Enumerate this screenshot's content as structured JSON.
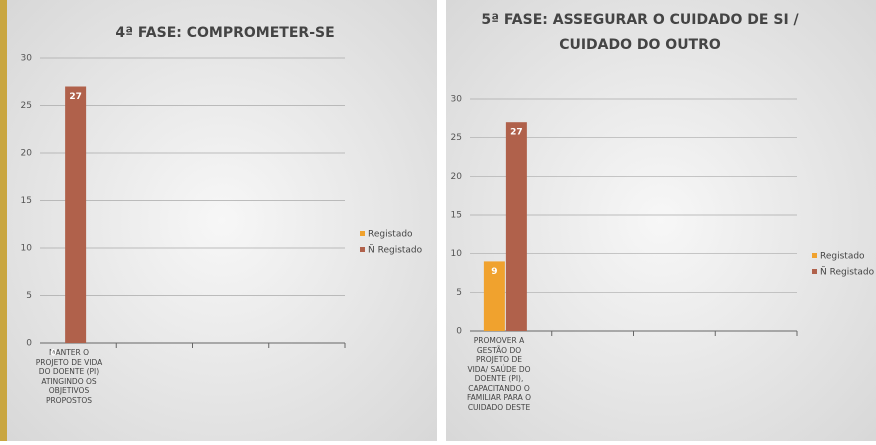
{
  "chart_data": [
    {
      "type": "bar",
      "title": "4ª FASE: COMPROMETER-SE",
      "categories": [
        "MANTER O PROJETO DE VIDA DO DOENTE (PI) ATINGINDO OS OBJETIVOS PROPOSTOS",
        null,
        null,
        null
      ],
      "series": [
        {
          "name": "Registado",
          "color": "#f0a22e",
          "values": [
            0,
            null,
            null,
            null
          ]
        },
        {
          "name": "Ñ Registado",
          "color": "#b0614b",
          "values": [
            27,
            null,
            null,
            null
          ]
        }
      ],
      "ylim": [
        0,
        30
      ],
      "yticks": [
        0,
        5,
        10,
        15,
        20,
        25,
        30
      ],
      "grid": true,
      "legend": "right"
    },
    {
      "type": "bar",
      "title": [
        "5ª FASE: ASSEGURAR O CUIDADO DE SI /",
        "CUIDADO DO OUTRO"
      ],
      "categories": [
        "PROMOVER A GESTÃO DO PROJETO DE VIDA/ SAÚDE DO DOENTE (PI), CAPACITANDO O FAMILIAR PARA O CUIDADO DESTE",
        null,
        null,
        null
      ],
      "series": [
        {
          "name": "Registado",
          "color": "#f0a22e",
          "values": [
            9,
            null,
            null,
            null
          ]
        },
        {
          "name": "Ñ Registado",
          "color": "#b0614b",
          "values": [
            27,
            null,
            null,
            null
          ]
        }
      ],
      "ylim": [
        0,
        30
      ],
      "yticks": [
        0,
        5,
        10,
        15,
        20,
        25,
        30
      ],
      "grid": true,
      "legend": "right"
    }
  ]
}
